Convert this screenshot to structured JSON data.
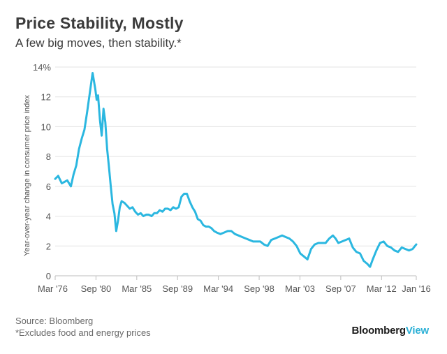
{
  "header": {
    "title": "Price Stability, Mostly",
    "subtitle": "A few big moves, then stability.*"
  },
  "footer": {
    "source": "Source: Bloomberg",
    "note": "*Excludes food and energy prices"
  },
  "brand": {
    "part1": "Bloomberg",
    "part2": "View"
  },
  "colors": {
    "line": "#2bb7e0",
    "grid": "#e3e3e3",
    "axis": "#bdbdbd",
    "text": "#555555"
  },
  "chart_data": {
    "type": "line",
    "title": "Price Stability, Mostly",
    "subtitle": "A few big moves, then stability.*",
    "xlabel": "",
    "ylabel": "Year-over-year change in consumer price index",
    "ylim": [
      0,
      14
    ],
    "xlim": [
      1976.17,
      2016.0
    ],
    "grid": true,
    "y_ticks": [
      0,
      2,
      4,
      6,
      8,
      10,
      12,
      14
    ],
    "y_tick_labels": [
      "0",
      "2",
      "4",
      "6",
      "8",
      "10",
      "12",
      "14%"
    ],
    "x_ticks": [
      1976.17,
      1980.67,
      1985.17,
      1989.67,
      1994.17,
      1998.67,
      2003.17,
      2007.67,
      2012.17,
      2016.0
    ],
    "x_tick_labels": [
      "Mar '76",
      "Sep '80",
      "Mar '85",
      "Sep '89",
      "Mar '94",
      "Sep '98",
      "Mar '03",
      "Sep '07",
      "Mar '12",
      "Jan '16"
    ],
    "series": [
      {
        "name": "",
        "x": [
          1976.17,
          1976.5,
          1976.9,
          1977.2,
          1977.5,
          1977.9,
          1978.2,
          1978.5,
          1978.8,
          1979.1,
          1979.4,
          1979.7,
          1980.0,
          1980.3,
          1980.6,
          1980.75,
          1980.9,
          1981.1,
          1981.3,
          1981.5,
          1981.7,
          1981.9,
          1982.1,
          1982.3,
          1982.5,
          1982.7,
          1982.9,
          1983.1,
          1983.3,
          1983.5,
          1983.8,
          1984.1,
          1984.4,
          1984.7,
          1985.0,
          1985.3,
          1985.6,
          1985.9,
          1986.2,
          1986.5,
          1986.8,
          1987.1,
          1987.4,
          1987.7,
          1988.0,
          1988.3,
          1988.6,
          1988.9,
          1989.2,
          1989.5,
          1989.8,
          1990.1,
          1990.4,
          1990.7,
          1991.0,
          1991.3,
          1991.6,
          1991.9,
          1992.2,
          1992.5,
          1992.8,
          1993.1,
          1993.4,
          1993.7,
          1994.0,
          1994.4,
          1994.8,
          1995.2,
          1995.6,
          1996.0,
          1996.4,
          1996.8,
          1997.2,
          1997.6,
          1998.0,
          1998.4,
          1998.8,
          1999.2,
          1999.6,
          2000.0,
          2000.4,
          2000.8,
          2001.2,
          2001.6,
          2002.0,
          2002.4,
          2002.8,
          2003.2,
          2003.6,
          2004.0,
          2004.4,
          2004.8,
          2005.2,
          2005.6,
          2006.0,
          2006.4,
          2006.8,
          2007.1,
          2007.4,
          2007.8,
          2008.2,
          2008.6,
          2009.0,
          2009.4,
          2009.8,
          2010.2,
          2010.6,
          2010.9,
          2011.2,
          2011.6,
          2012.0,
          2012.4,
          2012.8,
          2013.2,
          2013.6,
          2014.0,
          2014.4,
          2014.8,
          2015.2,
          2015.6,
          2016.0
        ],
        "values": [
          6.5,
          6.7,
          6.2,
          6.3,
          6.4,
          6.0,
          6.8,
          7.4,
          8.5,
          9.2,
          9.8,
          11.0,
          12.3,
          13.6,
          12.5,
          11.8,
          12.1,
          10.5,
          9.4,
          11.2,
          10.3,
          8.5,
          7.3,
          6.0,
          4.8,
          4.2,
          3.0,
          3.7,
          4.6,
          5.0,
          4.9,
          4.7,
          4.5,
          4.6,
          4.3,
          4.1,
          4.2,
          4.0,
          4.1,
          4.1,
          4.0,
          4.2,
          4.2,
          4.4,
          4.3,
          4.5,
          4.5,
          4.4,
          4.6,
          4.5,
          4.6,
          5.3,
          5.5,
          5.5,
          5.0,
          4.6,
          4.3,
          3.8,
          3.7,
          3.4,
          3.3,
          3.3,
          3.2,
          3.0,
          2.9,
          2.8,
          2.9,
          3.0,
          3.0,
          2.8,
          2.7,
          2.6,
          2.5,
          2.4,
          2.3,
          2.3,
          2.3,
          2.1,
          2.0,
          2.4,
          2.5,
          2.6,
          2.7,
          2.6,
          2.5,
          2.3,
          2.0,
          1.5,
          1.3,
          1.1,
          1.8,
          2.1,
          2.2,
          2.2,
          2.2,
          2.5,
          2.7,
          2.5,
          2.2,
          2.3,
          2.4,
          2.5,
          1.9,
          1.6,
          1.5,
          1.0,
          0.8,
          0.6,
          1.1,
          1.7,
          2.2,
          2.3,
          2.0,
          1.9,
          1.7,
          1.6,
          1.9,
          1.8,
          1.7,
          1.8,
          2.1
        ]
      }
    ]
  }
}
